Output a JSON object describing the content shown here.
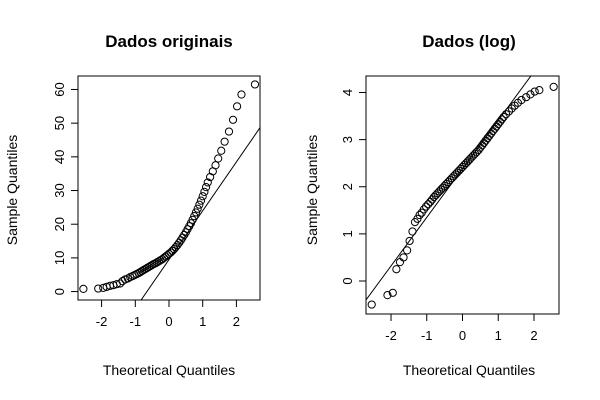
{
  "chart_data": [
    {
      "type": "scatter",
      "title": "Dados originais",
      "xlabel": "Theoretical Quantiles",
      "ylabel": "Sample Quantiles",
      "xticks": [
        -2,
        -1,
        0,
        1,
        2
      ],
      "yticks": [
        0,
        10,
        20,
        30,
        40,
        50,
        60
      ],
      "xlim": [
        -2.7,
        2.7
      ],
      "ylim": [
        -2.5,
        64
      ],
      "grid": false,
      "reference_line": {
        "slope": 14.5,
        "intercept": 9.5
      },
      "points": [
        [
          -2.54,
          0.8
        ],
        [
          -2.1,
          0.9
        ],
        [
          -1.95,
          1.1
        ],
        [
          -1.85,
          1.4
        ],
        [
          -1.75,
          1.7
        ],
        [
          -1.65,
          1.9
        ],
        [
          -1.55,
          2.2
        ],
        [
          -1.45,
          2.4
        ],
        [
          -1.38,
          3.1
        ],
        [
          -1.3,
          3.6
        ],
        [
          -1.22,
          3.9
        ],
        [
          -1.15,
          4.3
        ],
        [
          -1.08,
          4.6
        ],
        [
          -1.02,
          4.9
        ],
        [
          -0.96,
          5.2
        ],
        [
          -0.9,
          5.5
        ],
        [
          -0.85,
          5.8
        ],
        [
          -0.8,
          6.1
        ],
        [
          -0.75,
          6.4
        ],
        [
          -0.7,
          6.7
        ],
        [
          -0.65,
          7.0
        ],
        [
          -0.6,
          7.3
        ],
        [
          -0.55,
          7.6
        ],
        [
          -0.5,
          7.9
        ],
        [
          -0.45,
          8.2
        ],
        [
          -0.4,
          8.4
        ],
        [
          -0.35,
          8.7
        ],
        [
          -0.3,
          9.0
        ],
        [
          -0.25,
          9.3
        ],
        [
          -0.2,
          9.6
        ],
        [
          -0.15,
          10.0
        ],
        [
          -0.1,
          10.4
        ],
        [
          -0.05,
          10.8
        ],
        [
          0.0,
          11.2
        ],
        [
          0.05,
          11.6
        ],
        [
          0.1,
          12.1
        ],
        [
          0.15,
          12.6
        ],
        [
          0.2,
          13.2
        ],
        [
          0.25,
          13.8
        ],
        [
          0.3,
          14.5
        ],
        [
          0.35,
          15.2
        ],
        [
          0.4,
          16.0
        ],
        [
          0.45,
          16.8
        ],
        [
          0.5,
          17.6
        ],
        [
          0.55,
          18.5
        ],
        [
          0.6,
          19.4
        ],
        [
          0.65,
          20.3
        ],
        [
          0.7,
          21.3
        ],
        [
          0.75,
          22.4
        ],
        [
          0.8,
          23.5
        ],
        [
          0.85,
          24.6
        ],
        [
          0.9,
          25.8
        ],
        [
          0.95,
          27.0
        ],
        [
          1.0,
          28.3
        ],
        [
          1.05,
          29.6
        ],
        [
          1.1,
          31.0
        ],
        [
          1.15,
          32.4
        ],
        [
          1.22,
          34.0
        ],
        [
          1.3,
          35.7
        ],
        [
          1.38,
          37.5
        ],
        [
          1.46,
          39.5
        ],
        [
          1.55,
          41.8
        ],
        [
          1.65,
          44.5
        ],
        [
          1.78,
          47.5
        ],
        [
          1.9,
          51.0
        ],
        [
          2.02,
          55.0
        ],
        [
          2.15,
          58.5
        ],
        [
          2.55,
          61.5
        ]
      ]
    },
    {
      "type": "scatter",
      "title": "Dados (log)",
      "xlabel": "Theoretical Quantiles",
      "ylabel": "Sample Quantiles",
      "xticks": [
        -2,
        -1,
        0,
        1,
        2
      ],
      "yticks": [
        0,
        1,
        2,
        3,
        4
      ],
      "xlim": [
        -2.7,
        2.7
      ],
      "ylim": [
        -0.7,
        4.35
      ],
      "grid": false,
      "reference_line": {
        "slope": 1.03,
        "intercept": 2.38
      },
      "points": [
        [
          -2.54,
          -0.5
        ],
        [
          -2.1,
          -0.3
        ],
        [
          -1.95,
          -0.25
        ],
        [
          -1.85,
          0.25
        ],
        [
          -1.75,
          0.4
        ],
        [
          -1.65,
          0.5
        ],
        [
          -1.55,
          0.65
        ],
        [
          -1.48,
          0.85
        ],
        [
          -1.4,
          1.05
        ],
        [
          -1.33,
          1.25
        ],
        [
          -1.26,
          1.32
        ],
        [
          -1.2,
          1.4
        ],
        [
          -1.14,
          1.45
        ],
        [
          -1.08,
          1.52
        ],
        [
          -1.02,
          1.58
        ],
        [
          -0.96,
          1.63
        ],
        [
          -0.9,
          1.68
        ],
        [
          -0.85,
          1.73
        ],
        [
          -0.8,
          1.78
        ],
        [
          -0.75,
          1.82
        ],
        [
          -0.7,
          1.86
        ],
        [
          -0.65,
          1.9
        ],
        [
          -0.6,
          1.94
        ],
        [
          -0.55,
          1.98
        ],
        [
          -0.5,
          2.02
        ],
        [
          -0.45,
          2.06
        ],
        [
          -0.4,
          2.1
        ],
        [
          -0.35,
          2.14
        ],
        [
          -0.3,
          2.18
        ],
        [
          -0.25,
          2.22
        ],
        [
          -0.2,
          2.26
        ],
        [
          -0.15,
          2.3
        ],
        [
          -0.1,
          2.34
        ],
        [
          -0.05,
          2.38
        ],
        [
          0.0,
          2.42
        ],
        [
          0.05,
          2.46
        ],
        [
          0.1,
          2.5
        ],
        [
          0.15,
          2.54
        ],
        [
          0.2,
          2.58
        ],
        [
          0.25,
          2.62
        ],
        [
          0.3,
          2.66
        ],
        [
          0.35,
          2.7
        ],
        [
          0.4,
          2.74
        ],
        [
          0.45,
          2.78
        ],
        [
          0.5,
          2.83
        ],
        [
          0.55,
          2.88
        ],
        [
          0.6,
          2.93
        ],
        [
          0.65,
          2.98
        ],
        [
          0.7,
          3.03
        ],
        [
          0.75,
          3.08
        ],
        [
          0.8,
          3.13
        ],
        [
          0.85,
          3.18
        ],
        [
          0.9,
          3.23
        ],
        [
          0.95,
          3.28
        ],
        [
          1.0,
          3.33
        ],
        [
          1.05,
          3.38
        ],
        [
          1.1,
          3.43
        ],
        [
          1.15,
          3.48
        ],
        [
          1.22,
          3.54
        ],
        [
          1.3,
          3.6
        ],
        [
          1.38,
          3.66
        ],
        [
          1.46,
          3.72
        ],
        [
          1.55,
          3.78
        ],
        [
          1.65,
          3.84
        ],
        [
          1.78,
          3.9
        ],
        [
          1.9,
          3.96
        ],
        [
          2.02,
          4.02
        ],
        [
          2.15,
          4.05
        ],
        [
          2.55,
          4.12
        ]
      ]
    }
  ]
}
